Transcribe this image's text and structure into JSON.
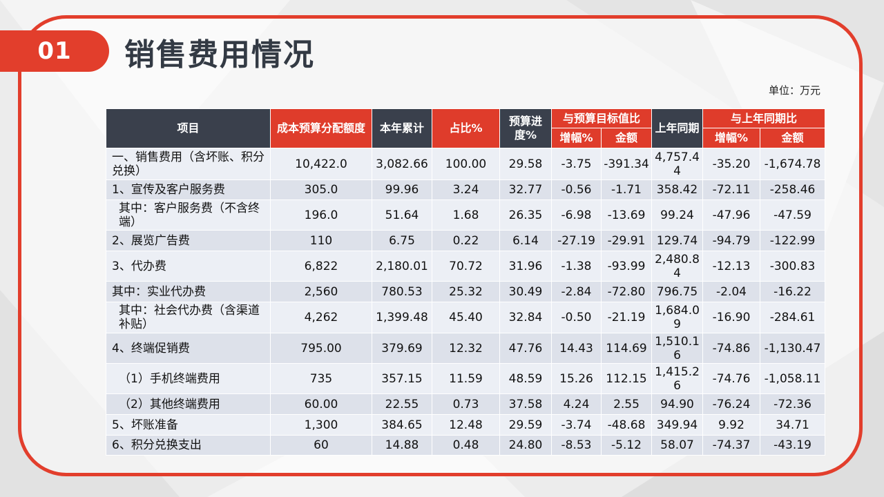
{
  "badge": "01",
  "title": "销售费用情况",
  "unit": "单位：万元",
  "headers": {
    "item": "项目",
    "budget": "成本预算分配额度",
    "ytd": "本年累计",
    "ratio": "占比%",
    "progress": "预算进度%",
    "vs_budget": "与预算目标值比",
    "vs_budget_rate": "增幅%",
    "vs_budget_amount": "金额",
    "last_year": "上年同期",
    "vs_last": "与上年同期比",
    "vs_last_rate": "增幅%",
    "vs_last_amount": "金额"
  },
  "rows": [
    {
      "name": "一、销售费用（含坏账、积分兑换）",
      "budget": "10,422.0",
      "ytd": "3,082.66",
      "ratio": "100.00",
      "progress": "29.58",
      "b_rate": "-3.75",
      "b_amt": "-391.34",
      "last": "4,757.44",
      "l_rate": "-35.20",
      "l_amt": "-1,674.78"
    },
    {
      "name": "1、宣传及客户服务费",
      "budget": "305.0",
      "ytd": "99.96",
      "ratio": "3.24",
      "progress": "32.77",
      "b_rate": "-0.56",
      "b_amt": "-1.71",
      "last": "358.42",
      "l_rate": "-72.11",
      "l_amt": "-258.46"
    },
    {
      "name": "其中：客户服务费（不含终端）",
      "budget": "196.0",
      "ytd": "51.64",
      "ratio": "1.68",
      "progress": "26.35",
      "b_rate": "-6.98",
      "b_amt": "-13.69",
      "last": "99.24",
      "l_rate": "-47.96",
      "l_amt": "-47.59"
    },
    {
      "name": "2、展览广告费",
      "budget": "110",
      "ytd": "6.75",
      "ratio": "0.22",
      "progress": "6.14",
      "b_rate": "-27.19",
      "b_amt": "-29.91",
      "last": "129.74",
      "l_rate": "-94.79",
      "l_amt": "-122.99"
    },
    {
      "name": "3、代办费",
      "budget": "6,822",
      "ytd": "2,180.01",
      "ratio": "70.72",
      "progress": "31.96",
      "b_rate": "-1.38",
      "b_amt": "-93.99",
      "last": "2,480.84",
      "l_rate": "-12.13",
      "l_amt": "-300.83"
    },
    {
      "name": "其中：实业代办费",
      "budget": "2,560",
      "ytd": "780.53",
      "ratio": "25.32",
      "progress": "30.49",
      "b_rate": "-2.84",
      "b_amt": "-72.80",
      "last": "796.75",
      "l_rate": "-2.04",
      "l_amt": "-16.22"
    },
    {
      "name": "其中：社会代办费（含渠道补贴）",
      "budget": "4,262",
      "ytd": "1,399.48",
      "ratio": "45.40",
      "progress": "32.84",
      "b_rate": "-0.50",
      "b_amt": "-21.19",
      "last": "1,684.09",
      "l_rate": "-16.90",
      "l_amt": "-284.61"
    },
    {
      "name": "4、终端促销费",
      "budget": "795.00",
      "ytd": "379.69",
      "ratio": "12.32",
      "progress": "47.76",
      "b_rate": "14.43",
      "b_amt": "114.69",
      "last": "1,510.16",
      "l_rate": "-74.86",
      "l_amt": "-1,130.47"
    },
    {
      "name": "（1）手机终端费用",
      "budget": "735",
      "ytd": "357.15",
      "ratio": "11.59",
      "progress": "48.59",
      "b_rate": "15.26",
      "b_amt": "112.15",
      "last": "1,415.26",
      "l_rate": "-74.76",
      "l_amt": "-1,058.11"
    },
    {
      "name": "（2）其他终端费用",
      "budget": "60.00",
      "ytd": "22.55",
      "ratio": "0.73",
      "progress": "37.58",
      "b_rate": "4.24",
      "b_amt": "2.55",
      "last": "94.90",
      "l_rate": "-76.24",
      "l_amt": "-72.36"
    },
    {
      "name": "5、坏账准备",
      "budget": "1,300",
      "ytd": "384.65",
      "ratio": "12.48",
      "progress": "29.59",
      "b_rate": "-3.74",
      "b_amt": "-48.68",
      "last": "349.94",
      "l_rate": "9.92",
      "l_amt": "34.71"
    },
    {
      "name": "6、积分兑换支出",
      "budget": "60",
      "ytd": "14.88",
      "ratio": "0.48",
      "progress": "24.80",
      "b_rate": "-8.53",
      "b_amt": "-5.12",
      "last": "58.07",
      "l_rate": "-74.37",
      "l_amt": "-43.19"
    }
  ]
}
